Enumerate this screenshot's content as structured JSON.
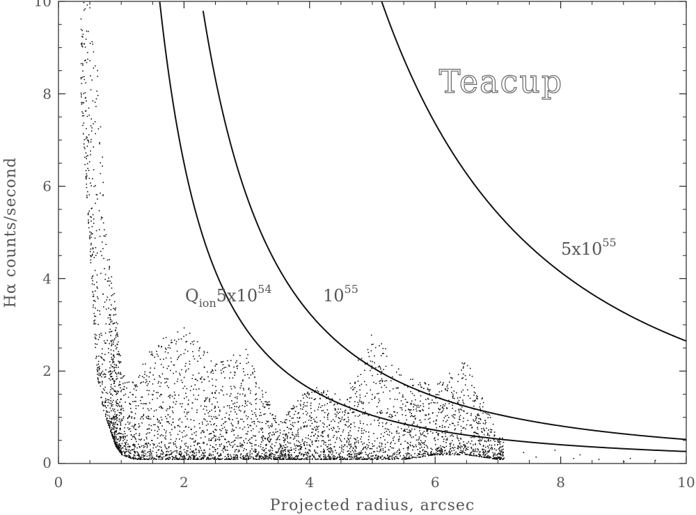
{
  "chart_data": {
    "type": "scatter",
    "title": "Teacup",
    "xlabel": "Projected radius, arcsec",
    "ylabel": "Hα counts/second",
    "xlim": [
      0,
      10
    ],
    "ylim": [
      0,
      10
    ],
    "xticks": [
      "0",
      "2",
      "4",
      "6",
      "8",
      "10"
    ],
    "yticks": [
      "0",
      "2",
      "4",
      "6",
      "8",
      "10"
    ],
    "grid": false,
    "scatter_envelope": {
      "description_points_x": [
        0.35,
        0.5,
        0.6,
        0.7,
        0.8,
        0.9,
        1.0,
        1.2,
        1.5,
        2.0,
        2.5,
        3.0,
        3.5,
        4.0,
        4.5,
        5.0,
        5.5,
        6.0,
        6.5,
        7.0
      ],
      "upper_y": [
        10,
        10,
        9.0,
        6.5,
        4.5,
        3.5,
        2.0,
        1.8,
        2.6,
        3.0,
        2.2,
        2.5,
        0.9,
        1.7,
        1.5,
        2.9,
        1.9,
        1.7,
        2.3,
        0.6
      ],
      "lower_y": [
        8.0,
        4.5,
        2.0,
        1.2,
        0.8,
        0.4,
        0.2,
        0.1,
        0.1,
        0.1,
        0.1,
        0.1,
        0.1,
        0.1,
        0.1,
        0.1,
        0.1,
        0.2,
        0.2,
        0.1
      ]
    },
    "curves": [
      {
        "name": "5x10^54",
        "form": "y = k / x^2",
        "k": 26.0,
        "x_range": [
          1.5,
          10
        ]
      },
      {
        "name": "10^55",
        "form": "y = k / x^2",
        "k": 52.0,
        "x_range": [
          2.2,
          10
        ]
      },
      {
        "name": "5x10^55",
        "form": "y = k / x^2",
        "k": 265.0,
        "x_range": [
          5.1,
          10
        ]
      }
    ],
    "annotations": {
      "qion_label": "Q",
      "qion_sub": "ion",
      "curve1_base": "5x10",
      "curve1_exp": "54",
      "curve2_base": "10",
      "curve2_exp": "55",
      "curve3_base": "5x10",
      "curve3_exp": "55"
    }
  }
}
